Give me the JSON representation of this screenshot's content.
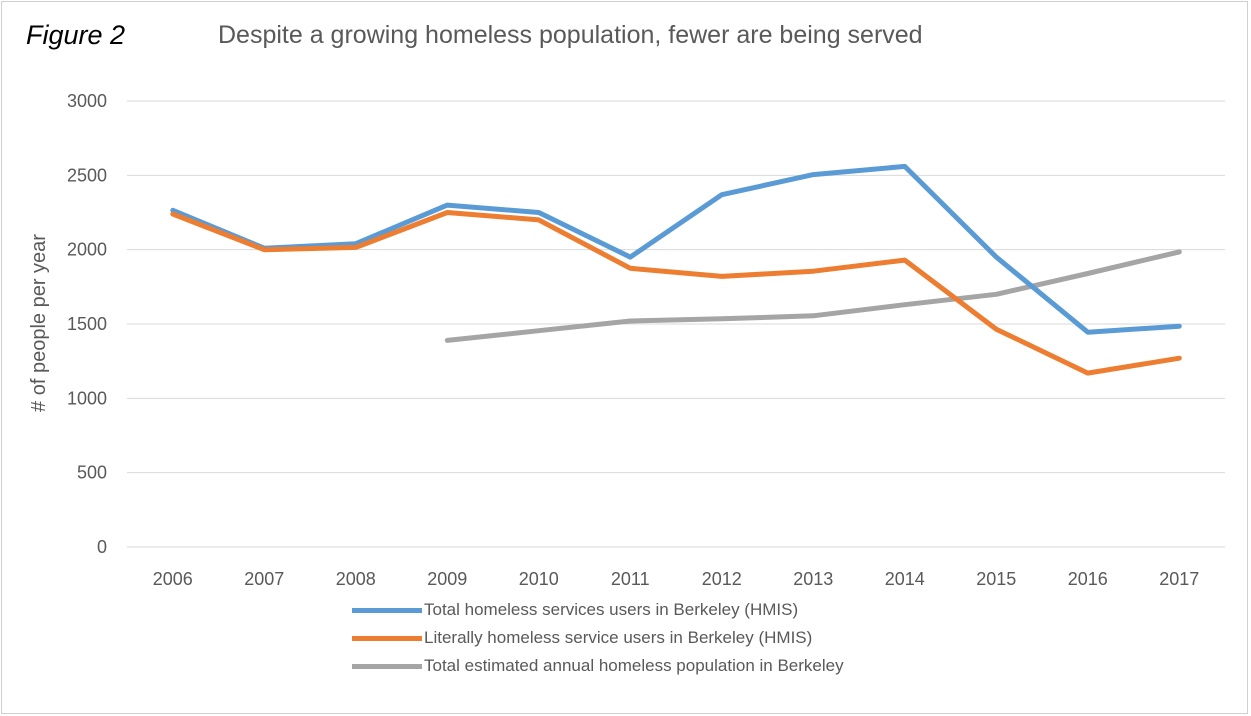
{
  "figure": {
    "label": "Figure 2",
    "title": "Despite a growing homeless population, fewer are being served"
  },
  "chart_data": {
    "type": "line",
    "title": "Despite a growing homeless population, fewer are being served",
    "xlabel": "",
    "ylabel": "# of people per year",
    "categories": [
      "2006",
      "2007",
      "2008",
      "2009",
      "2010",
      "2011",
      "2012",
      "2013",
      "2014",
      "2015",
      "2016",
      "2017"
    ],
    "ylim": [
      0,
      3000
    ],
    "yticks": [
      "0",
      "500",
      "1000",
      "1500",
      "2000",
      "2500",
      "3000"
    ],
    "grid": true,
    "legend_position": "bottom",
    "series": [
      {
        "name": "Total homeless services users in Berkeley (HMIS)",
        "color": "#5b9bd5",
        "values": [
          2265,
          2010,
          2040,
          2300,
          2250,
          1950,
          2370,
          2505,
          2560,
          1950,
          1445,
          1485
        ]
      },
      {
        "name": "Literally homeless service users in Berkeley (HMIS)",
        "color": "#ed7d31",
        "values": [
          2240,
          2000,
          2015,
          2250,
          2200,
          1875,
          1820,
          1855,
          1930,
          1465,
          1170,
          1270
        ]
      },
      {
        "name": "Total estimated annual homeless population in Berkeley",
        "color": "#a5a5a5",
        "values": [
          null,
          null,
          null,
          1390,
          1455,
          1520,
          1535,
          1555,
          1630,
          1700,
          1840,
          1985
        ]
      }
    ]
  }
}
